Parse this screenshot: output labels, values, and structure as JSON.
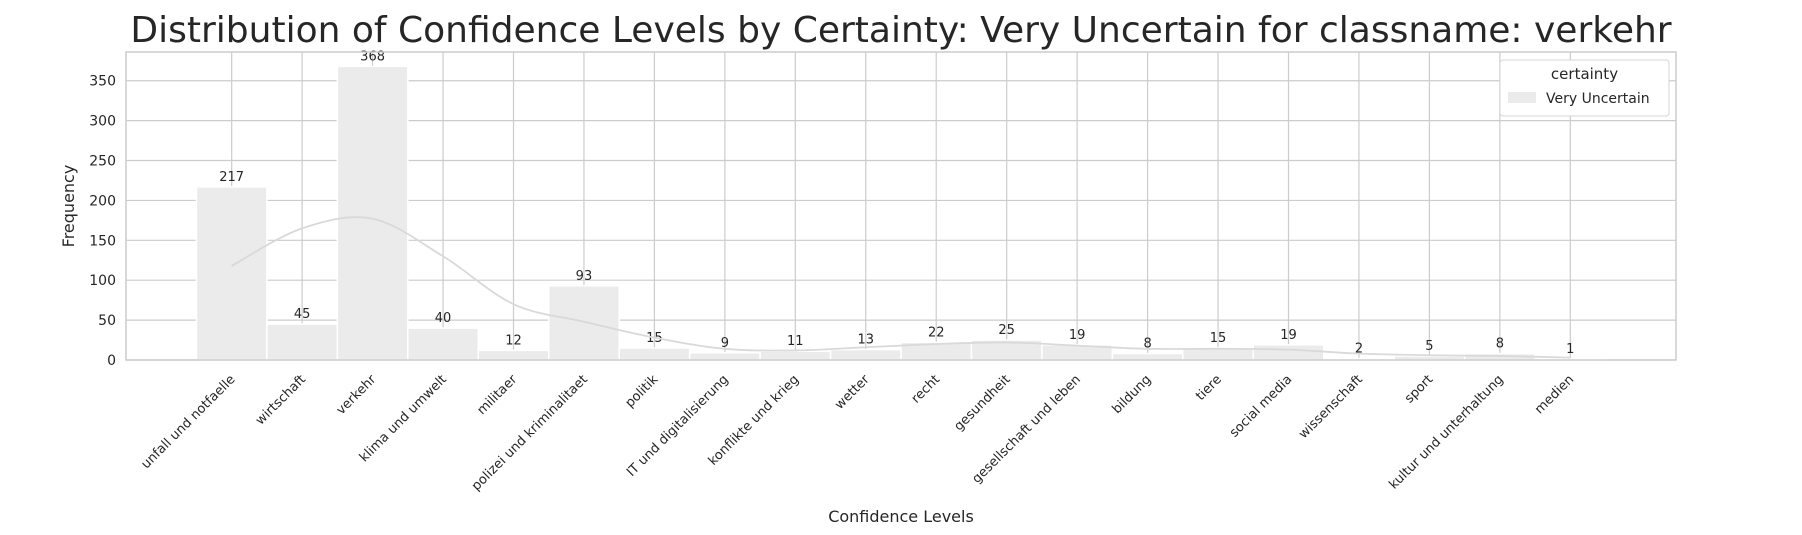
{
  "chart_data": {
    "type": "bar",
    "title": "Distribution of Confidence Levels by Certainty: Very Uncertain for classname: verkehr",
    "x_label": "Confidence Levels",
    "y_label": "Frequency",
    "categories": [
      "unfall und notfaelle",
      "wirtschaft",
      "verkehr",
      "klima und umwelt",
      "militaer",
      "polizei und kriminalitaet",
      "politik",
      "IT und digitalisierung",
      "konflikte und krieg",
      "wetter",
      "recht",
      "gesundheit",
      "gesellschaft und leben",
      "bildung",
      "tiere",
      "social media",
      "wissenschaft",
      "sport",
      "kultur und unterhaltung",
      "medien"
    ],
    "series": [
      {
        "name": "Very Uncertain",
        "color": "#ebebeb",
        "values": [
          217,
          45,
          368,
          40,
          12,
          93,
          15,
          9,
          11,
          13,
          22,
          25,
          19,
          8,
          15,
          19,
          2,
          5,
          8,
          1
        ]
      }
    ],
    "kde_values": [
      118,
      165,
      177,
      130,
      70,
      48,
      28,
      14,
      12,
      16,
      20,
      22,
      18,
      14,
      14,
      13,
      8,
      6,
      5,
      3
    ],
    "kde_color": "#d9d9d9",
    "legend_title": "certainty",
    "legend_position": "upper right",
    "ylim": [
      0,
      386
    ],
    "yticks": [
      0,
      50,
      100,
      150,
      200,
      250,
      300,
      350
    ],
    "grid": true
  }
}
